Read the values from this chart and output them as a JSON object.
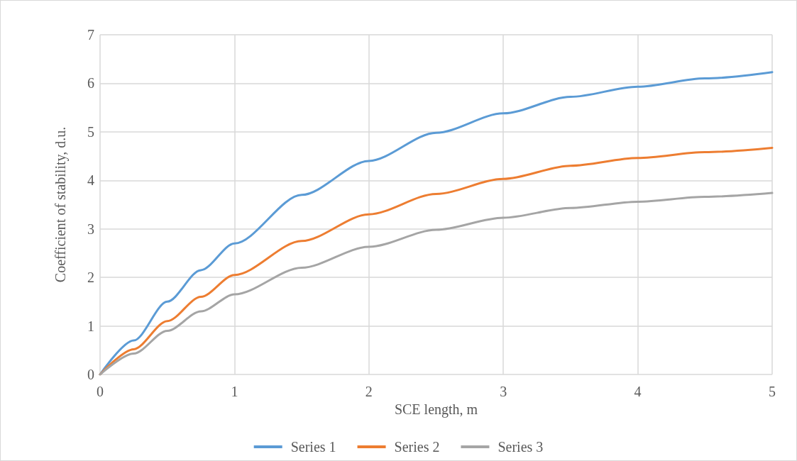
{
  "chart_data": {
    "type": "line",
    "xlabel": "SCE length, m",
    "ylabel": "Coefficient of stability, d.u.",
    "x": [
      0,
      0.25,
      0.5,
      0.75,
      1,
      1.5,
      2,
      2.5,
      3,
      3.5,
      4,
      4.5,
      5
    ],
    "series": [
      {
        "name": "Series 1",
        "color": "#5b9bd5",
        "values": [
          0,
          0.7,
          1.5,
          2.15,
          2.7,
          3.7,
          4.4,
          4.98,
          5.38,
          5.72,
          5.93,
          6.1,
          6.23
        ]
      },
      {
        "name": "Series 2",
        "color": "#ed7d31",
        "values": [
          0,
          0.52,
          1.1,
          1.6,
          2.05,
          2.75,
          3.3,
          3.72,
          4.03,
          4.3,
          4.46,
          4.58,
          4.67
        ]
      },
      {
        "name": "Series 3",
        "color": "#a5a5a5",
        "values": [
          0,
          0.43,
          0.9,
          1.3,
          1.65,
          2.2,
          2.63,
          2.98,
          3.23,
          3.43,
          3.56,
          3.66,
          3.74
        ]
      }
    ],
    "xlim": [
      0,
      5
    ],
    "xticks": [
      0,
      1,
      2,
      3,
      4,
      5
    ],
    "ylim": [
      0,
      7
    ],
    "yticks": [
      0,
      1,
      2,
      3,
      4,
      5,
      6,
      7
    ],
    "grid": true,
    "legend": "bottom",
    "marker": "none",
    "line_style": "solid"
  }
}
